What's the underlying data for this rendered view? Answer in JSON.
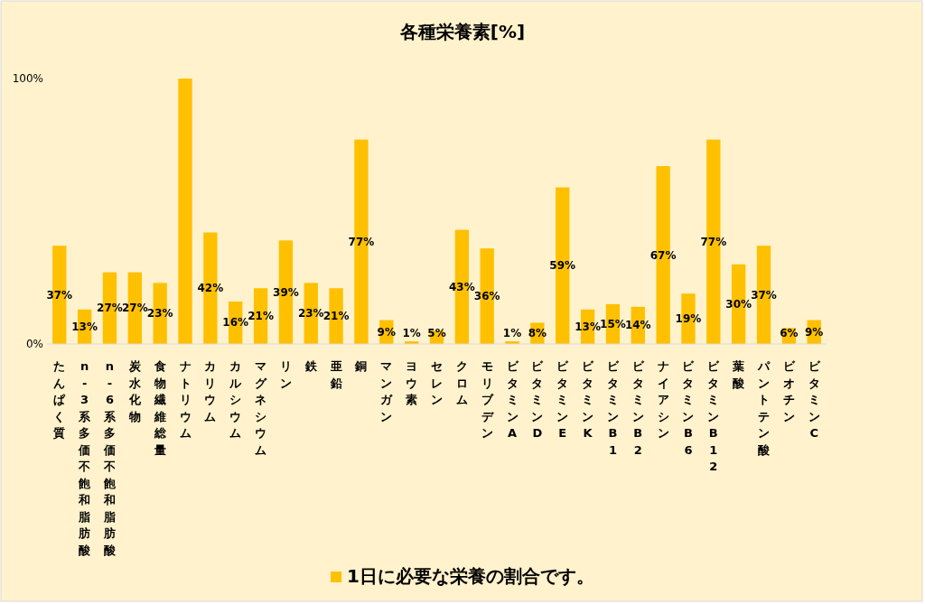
{
  "chart_data": {
    "type": "bar",
    "title": "各種栄養素[%]",
    "categories": [
      "たんぱく質",
      "n-3系多価不飽和脂肪酸",
      "n-6系多価不飽和脂肪酸",
      "炭水化物",
      "食物繊維総量",
      "ナトリウム",
      "カリウム",
      "カルシウム",
      "マグネシウム",
      "リン",
      "鉄",
      "亜鉛",
      "銅",
      "マンガン",
      "ヨウ素",
      "セレン",
      "クロム",
      "モリブデン",
      "ビタミンA",
      "ビタミンD",
      "ビタミンE",
      "ビタミンK",
      "ビタミンB1",
      "ビタミンB2",
      "ナイアシン",
      "ビタミンB6",
      "ビタミンB12",
      "葉酸",
      "パントテン酸",
      "ビオチン",
      "ビタミンC"
    ],
    "series": [
      {
        "name": "1日に必要な栄養の割合です。",
        "color": "#ffc000",
        "values": [
          37,
          13,
          27,
          27,
          23,
          100,
          42,
          16,
          21,
          39,
          23,
          21,
          77,
          9,
          1,
          5,
          43,
          36,
          1,
          8,
          59,
          13,
          15,
          14,
          67,
          19,
          77,
          30,
          37,
          6,
          9
        ],
        "value_labels": [
          "37%",
          "13%",
          "27%",
          "27%",
          "23%",
          null,
          "42%",
          "16%",
          "21%",
          "39%",
          "23%",
          "21%",
          "77%",
          "9%",
          "1%",
          "5%",
          "43%",
          "36%",
          "1%",
          "8%",
          "59%",
          "13%",
          "15%",
          "14%",
          "67%",
          "19%",
          "77%",
          "30%",
          "37%",
          "6%",
          "9%"
        ]
      }
    ],
    "ylim": [
      0,
      100
    ],
    "yticks": [
      {
        "value": 0,
        "label": "0%"
      },
      {
        "value": 100,
        "label": "100%"
      }
    ],
    "legend": "bottom"
  }
}
